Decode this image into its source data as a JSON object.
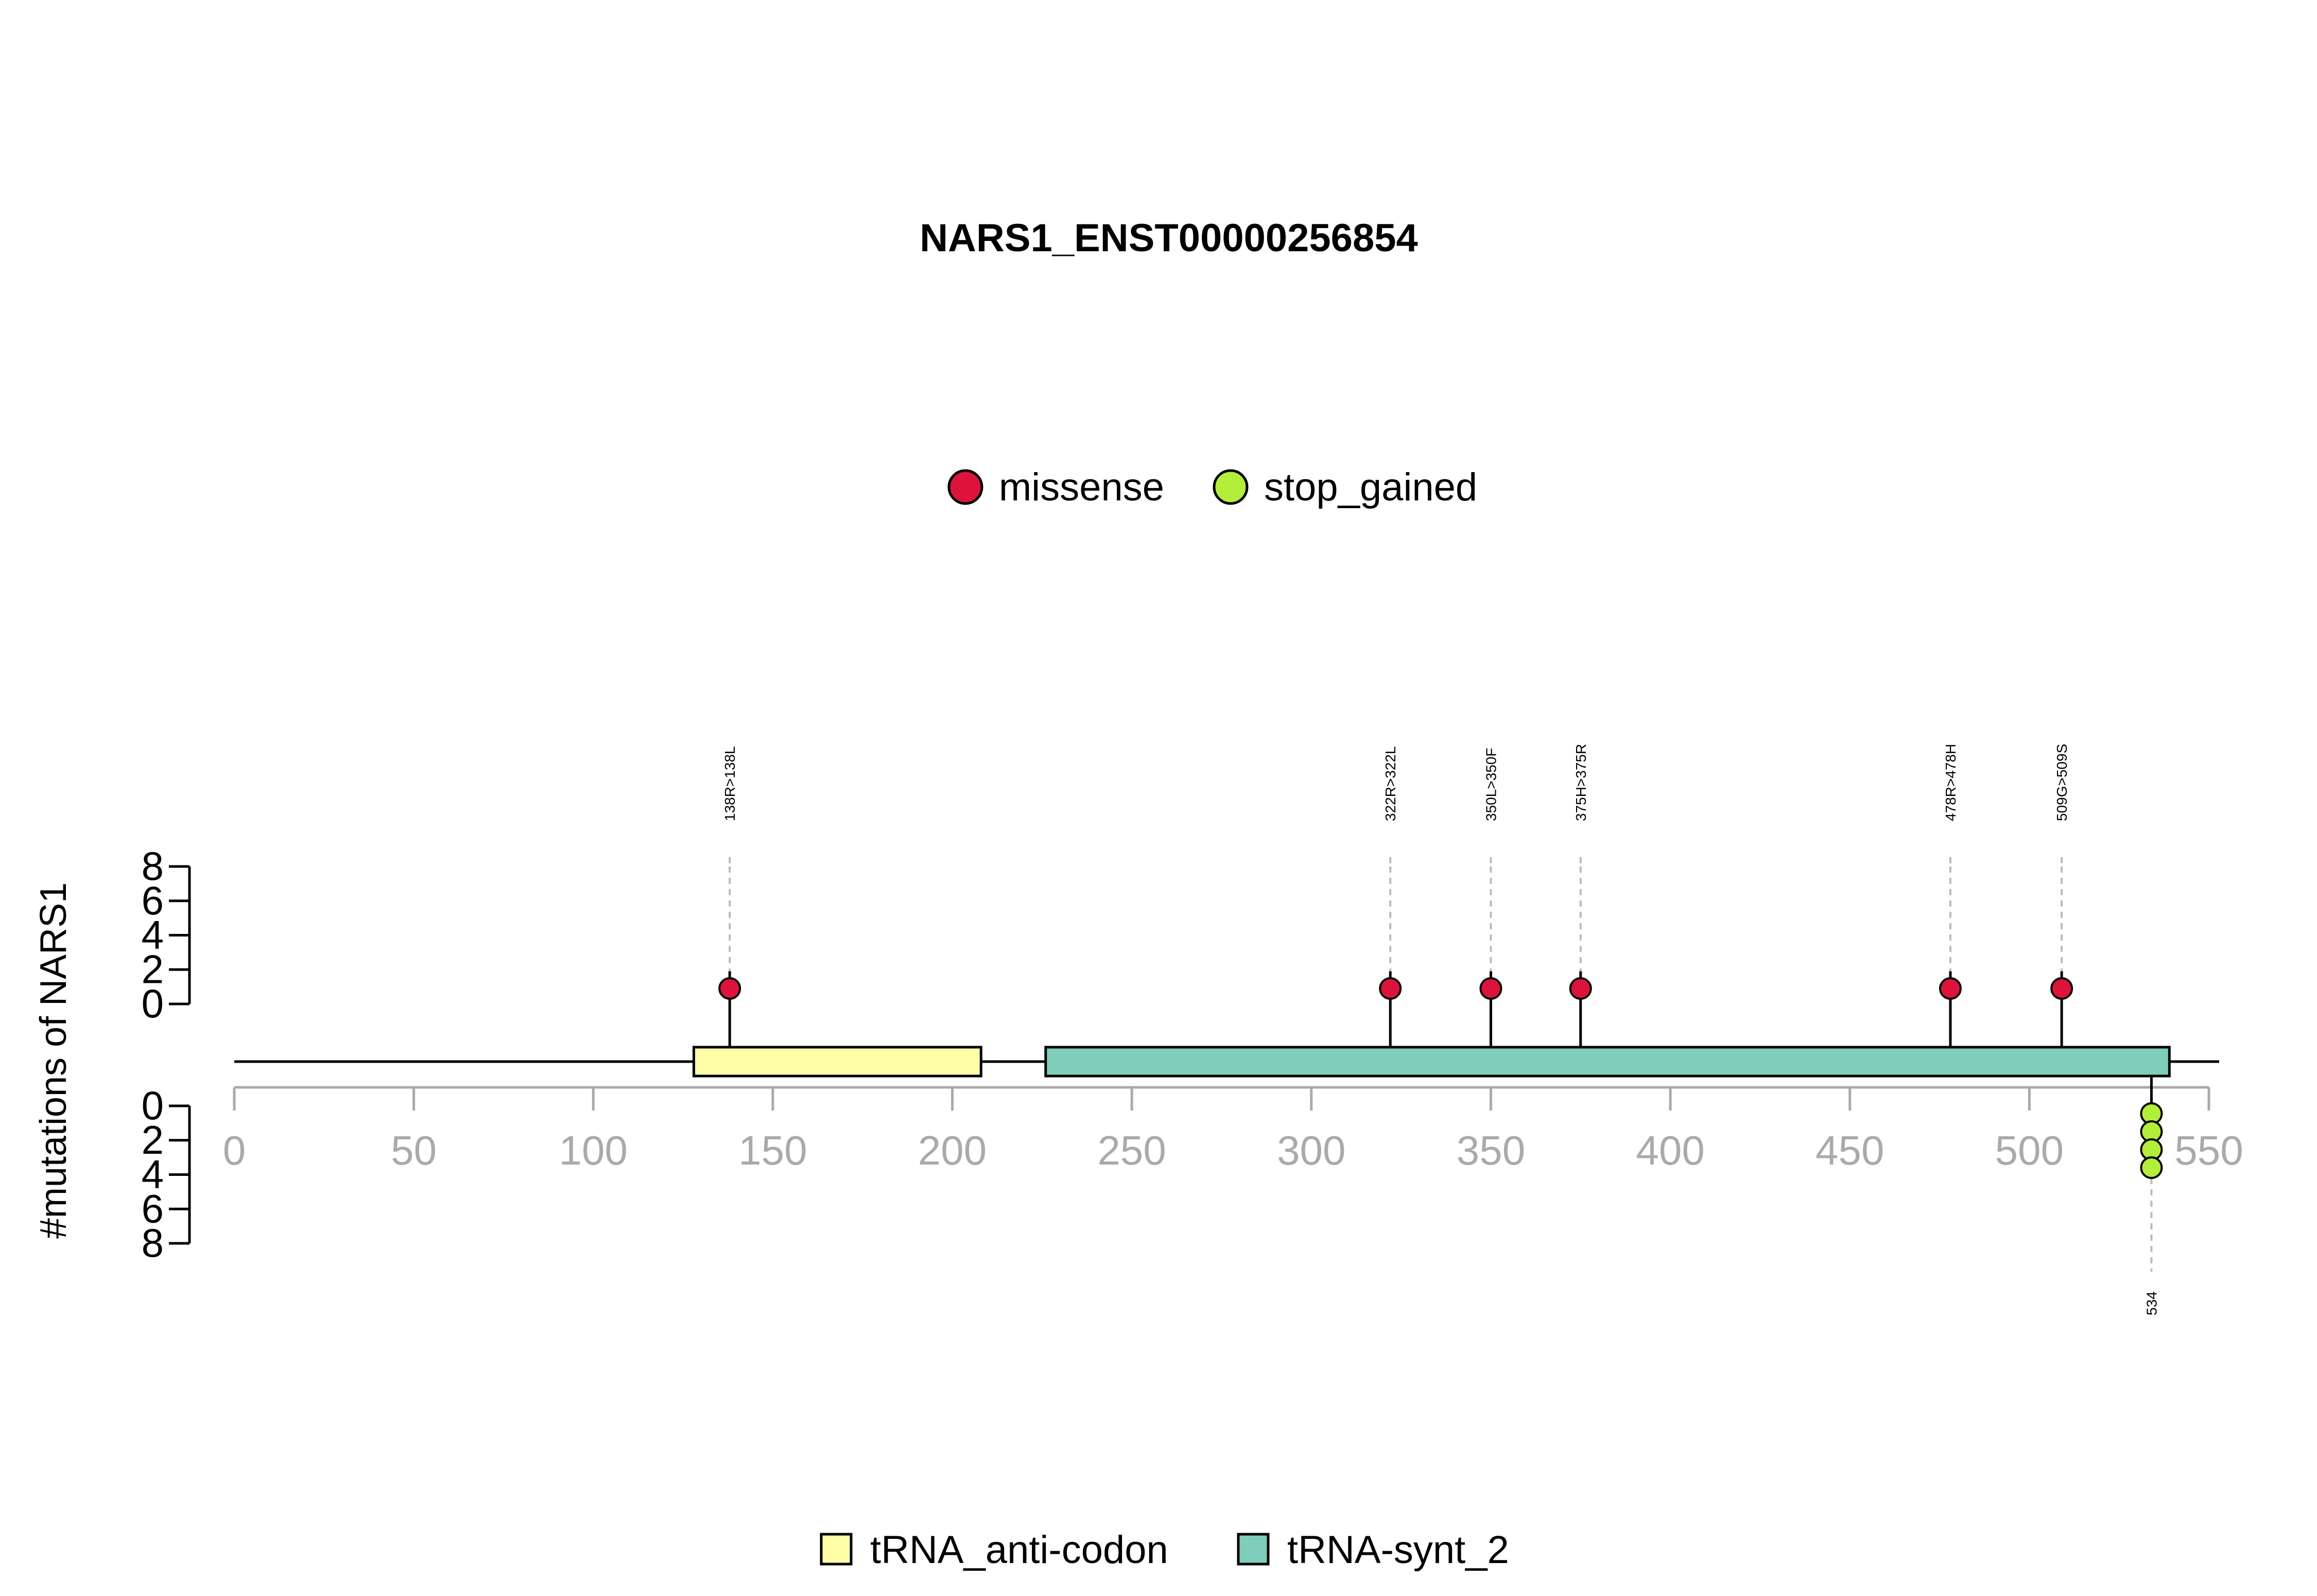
{
  "chart_data": {
    "type": "lollipop",
    "title": "NARS1_ENST00000256854",
    "ylabel": "#mutations of NARS1",
    "xlim": [
      0,
      550
    ],
    "x_ticks": [
      0,
      50,
      100,
      150,
      200,
      250,
      300,
      350,
      400,
      450,
      500,
      550
    ],
    "y_ticks_upper": [
      0,
      2,
      4,
      6,
      8
    ],
    "y_ticks_lower": [
      0,
      2,
      4,
      6,
      8
    ],
    "ylim": [
      0,
      8
    ],
    "legend_mutation": [
      {
        "name": "missense",
        "color": "#DC143C"
      },
      {
        "name": "stop_gained",
        "color": "#B3EE3A"
      }
    ],
    "domains": [
      {
        "name": "tRNA_anti-codon",
        "start": 128,
        "end": 208,
        "color": "#FFFFA8"
      },
      {
        "name": "tRNA-synt_2",
        "start": 226,
        "end": 539,
        "color": "#7FCDBB"
      }
    ],
    "protein_length": 540,
    "mutations_upper": [
      {
        "label": "138R>138L",
        "position": 138,
        "count": 1,
        "type": "missense"
      },
      {
        "label": "322R>322L",
        "position": 322,
        "count": 1,
        "type": "missense"
      },
      {
        "label": "350L>350F",
        "position": 350,
        "count": 1,
        "type": "missense"
      },
      {
        "label": "375H>375R",
        "position": 375,
        "count": 1,
        "type": "missense"
      },
      {
        "label": "478R>478H",
        "position": 478,
        "count": 1,
        "type": "missense"
      },
      {
        "label": "509G>509S",
        "position": 509,
        "count": 1,
        "type": "missense"
      }
    ],
    "mutations_lower": [
      {
        "label": "534",
        "position": 534,
        "count": 4,
        "type": "stop_gained"
      }
    ]
  }
}
